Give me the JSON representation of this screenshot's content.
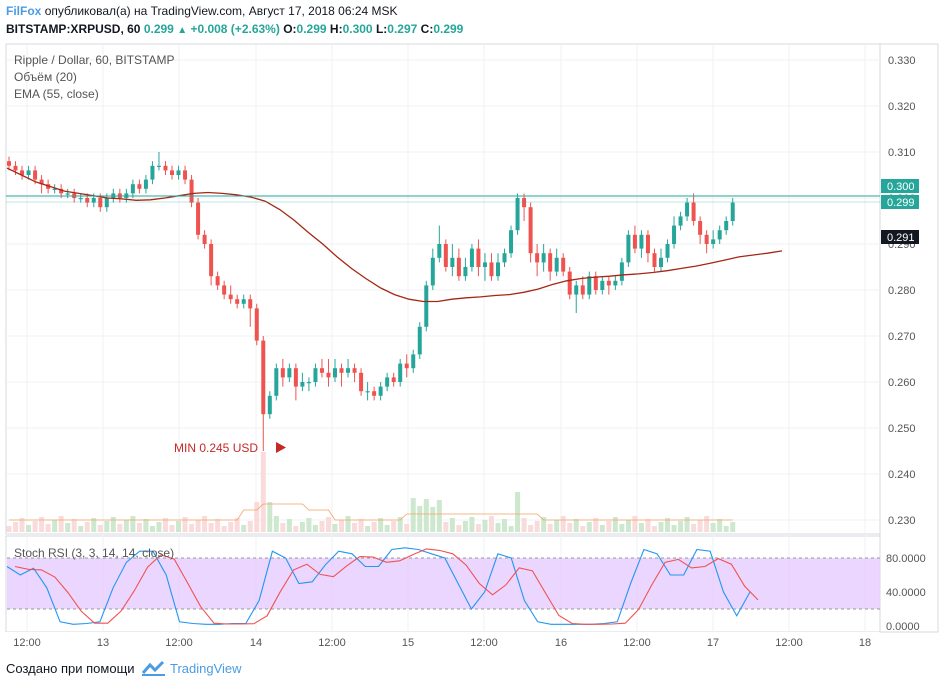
{
  "header": {
    "author": "FilFox",
    "published_text": "опубликовал(а) на TradingView.com, Август 17, 2018 06:24 MSK",
    "symbol": "BITSTAMP:XRPUSD, 60",
    "last": "0.299",
    "change": "+0.008 (+2.63%)",
    "o_label": "O:",
    "o_value": "0.299",
    "h_label": "H:",
    "h_value": "0.300",
    "l_label": "L:",
    "l_value": "0.297",
    "c_label": "C:",
    "c_value": "0.299"
  },
  "legend": {
    "title": "Ripple / Dollar, 60, BITSTAMP",
    "volume": "Объём (20)",
    "ema": "EMA (55, close)",
    "rsi": "Stoch RSI (3, 3, 14, 14, close)"
  },
  "price_axis": {
    "ticks": [
      "0.330",
      "0.320",
      "0.310",
      "0.300",
      "0.290",
      "0.280",
      "0.270",
      "0.260",
      "0.250",
      "0.240",
      "0.230"
    ],
    "badge_high": "0.300",
    "badge_last": "0.299",
    "badge_ema": "0.291"
  },
  "rsi_axis": {
    "ticks": [
      "80.0000",
      "40.0000",
      "0.0000"
    ]
  },
  "time_axis": {
    "ticks": [
      "12:00",
      "13",
      "12:00",
      "14",
      "12:00",
      "15",
      "12:00",
      "16",
      "12:00",
      "17",
      "12:00",
      "18"
    ]
  },
  "annotation": {
    "min_label": "MIN 0.245 USD"
  },
  "footer": {
    "made_with": "Создано при помощи",
    "brand": "TradingView"
  },
  "colors": {
    "up": "#26a69a",
    "down": "#ef5350",
    "ema": "#a52714",
    "author": "#4b9ce2",
    "rsi_band": "#e6ccff",
    "min_label": "#c62828"
  },
  "chart_data": {
    "type": "candlestick",
    "title": "Ripple / Dollar, 60, BITSTAMP",
    "ylim": [
      0.226,
      0.334
    ],
    "x_ticks": [
      "12:00",
      "13",
      "12:00",
      "14",
      "12:00",
      "15",
      "12:00",
      "16",
      "12:00",
      "17",
      "12:00",
      "18"
    ],
    "series": [
      {
        "name": "EMA (55, close)",
        "type": "line",
        "values": [
          0.3065,
          0.305,
          0.3035,
          0.3025,
          0.3015,
          0.301,
          0.3005,
          0.3,
          0.2998,
          0.2995,
          0.2996,
          0.3,
          0.3005,
          0.301,
          0.3012,
          0.301,
          0.3007,
          0.3002,
          0.2993,
          0.2975,
          0.2952,
          0.2925,
          0.29,
          0.2872,
          0.2847,
          0.2825,
          0.2805,
          0.279,
          0.278,
          0.2775,
          0.2775,
          0.278,
          0.2783,
          0.2785,
          0.2788,
          0.279,
          0.2795,
          0.2802,
          0.2812,
          0.282,
          0.2825,
          0.2828,
          0.283,
          0.2833,
          0.2835,
          0.2838,
          0.2842,
          0.2847,
          0.2852,
          0.2858,
          0.2865,
          0.2872,
          0.2876,
          0.288,
          0.2885
        ]
      },
      {
        "name": "Stoch RSI K",
        "type": "line",
        "values": [
          70,
          60,
          68,
          45,
          5,
          2,
          3,
          5,
          45,
          75,
          88,
          88,
          60,
          5,
          3,
          2,
          2,
          3,
          3,
          30,
          88,
          80,
          50,
          52,
          72,
          88,
          85,
          70,
          70,
          90,
          92,
          90,
          85,
          80,
          50,
          20,
          40,
          85,
          80,
          30,
          5,
          2,
          2,
          2,
          2,
          3,
          5,
          50,
          90,
          85,
          60,
          60,
          90,
          88,
          40,
          12,
          40
        ]
      }
    ],
    "min_annotation": {
      "label": "MIN 0.245 USD",
      "value": 0.245
    }
  }
}
